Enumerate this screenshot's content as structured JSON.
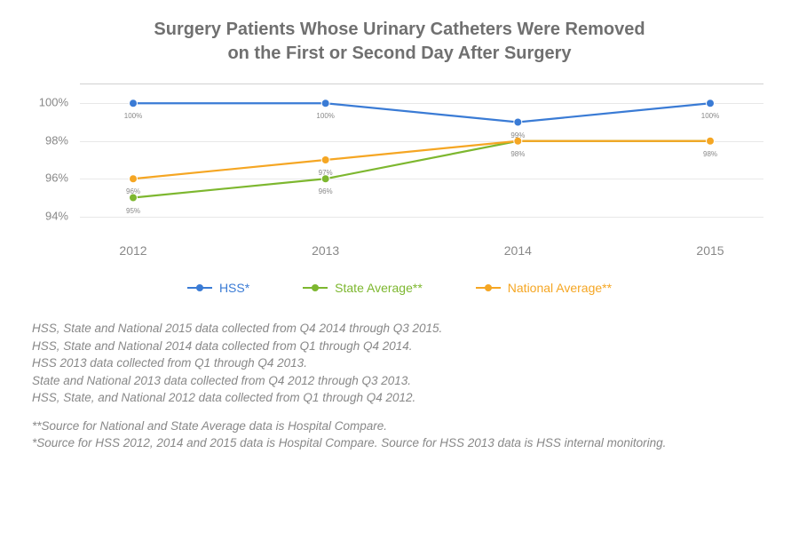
{
  "title_line1": "Surgery Patients Whose Urinary Catheters Were Removed",
  "title_line2": "on the First or Second Day After Surgery",
  "chart": {
    "type": "line",
    "background_color": "#ffffff",
    "grid_color": "#e8e8e8",
    "axis_line_color": "#d0d0d0",
    "tick_font_color": "#888888",
    "tick_fontsize": 13,
    "point_label_fontsize": 8,
    "x": {
      "categories": [
        "2012",
        "2013",
        "2014",
        "2015"
      ]
    },
    "y": {
      "min": 93,
      "max": 101,
      "ticks": [
        94,
        96,
        98,
        100
      ],
      "tick_labels": [
        "94%",
        "96%",
        "98%",
        "100%"
      ]
    },
    "series": [
      {
        "key": "hss",
        "name": "HSS*",
        "color": "#3a7bd5",
        "line_width": 2.2,
        "marker_radius": 4.5,
        "values": [
          100,
          100,
          99,
          100
        ],
        "point_labels": [
          "100%",
          "100%",
          "99%",
          "100%"
        ]
      },
      {
        "key": "state",
        "name": "State Average**",
        "color": "#7db72f",
        "line_width": 2.2,
        "marker_radius": 4.5,
        "values": [
          95,
          96,
          98,
          98
        ],
        "point_labels": [
          "95%",
          "96%",
          "98%",
          "98%"
        ]
      },
      {
        "key": "national",
        "name": "National Average**",
        "color": "#f5a623",
        "line_width": 2.2,
        "marker_radius": 4.5,
        "values": [
          96,
          97,
          98,
          98
        ],
        "point_labels": [
          "96%",
          "97%",
          "",
          ""
        ]
      }
    ]
  },
  "legend": {
    "items": [
      {
        "label": "HSS*",
        "color": "#3a7bd5"
      },
      {
        "label": "State Average**",
        "color": "#7db72f"
      },
      {
        "label": "National Average**",
        "color": "#f5a623"
      }
    ],
    "fontsize": 14
  },
  "footnotes": {
    "block1": [
      "HSS, State and National 2015 data collected from Q4 2014 through Q3 2015.",
      "HSS, State and National 2014 data collected from Q1 through Q4 2014.",
      "HSS 2013 data collected from Q1 through Q4 2013.",
      "State and National 2013 data collected from Q4 2012 through Q3 2013.",
      "HSS, State, and National 2012 data collected from Q1 through Q4 2012."
    ],
    "block2": [
      "**Source for National and State Average data is Hospital Compare.",
      "*Source for HSS 2012, 2014 and 2015 data is Hospital Compare. Source for HSS 2013 data is HSS internal monitoring."
    ],
    "fontsize": 13.5,
    "color": "#888888"
  }
}
